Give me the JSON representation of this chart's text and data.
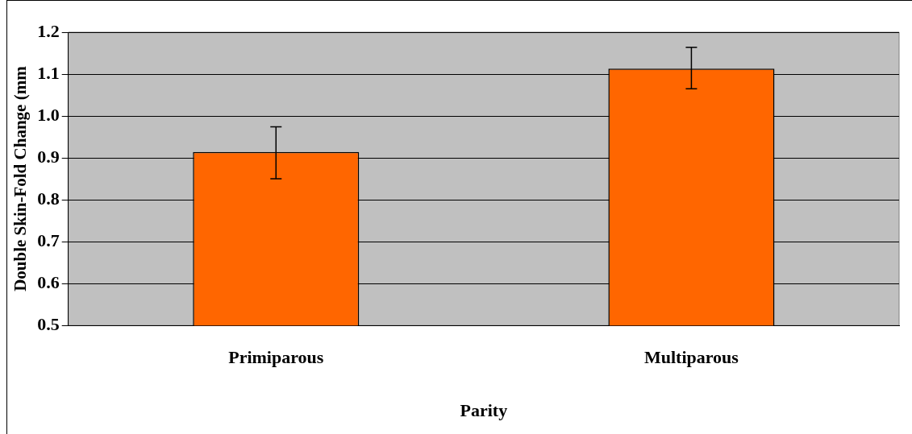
{
  "chart_data": {
    "type": "bar",
    "xlabel": "Parity",
    "ylabel": "Double Skin-Fold Change (mm",
    "categories": [
      "Primiparous",
      "Multiparous"
    ],
    "values": [
      0.914,
      1.113
    ],
    "errors": [
      [
        0.85,
        0.974
      ],
      [
        1.065,
        1.164
      ]
    ],
    "color": "#ff6600",
    "ylim": [
      0.5,
      1.2
    ],
    "yticks": [
      {
        "value": 0.5,
        "label": "0.5"
      },
      {
        "value": 0.6,
        "label": "0.6"
      },
      {
        "value": 0.7,
        "label": "0.7"
      },
      {
        "value": 0.8,
        "label": "0.8"
      },
      {
        "value": 0.9,
        "label": "0.9"
      },
      {
        "value": 1.0,
        "label": "1.0"
      },
      {
        "value": 1.1,
        "label": "1.1"
      },
      {
        "value": 1.2,
        "label": "1.2"
      }
    ],
    "grid": "y",
    "legend": false
  }
}
